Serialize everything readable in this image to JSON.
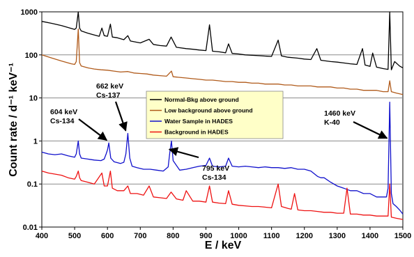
{
  "chart_data": {
    "type": "line",
    "title": "",
    "xlabel": "E / keV",
    "ylabel": "Count rate / d⁻¹ keV⁻¹",
    "xlim": [
      400,
      1500
    ],
    "ylim": [
      0.01,
      1000
    ],
    "yscale": "log",
    "grid": "horizontal",
    "legend_position": "top-center",
    "x_ticks": [
      400,
      500,
      600,
      700,
      800,
      900,
      1000,
      1100,
      1200,
      1300,
      1400,
      1500
    ],
    "y_ticks": [
      0.01,
      0.1,
      1,
      10,
      100,
      1000
    ],
    "y_tick_labels": [
      "0.01",
      "0.1",
      "1",
      "10",
      "100",
      "1000"
    ],
    "series": [
      {
        "name": "Normal-Bkg above ground",
        "color": "#000000",
        "x": [
          400,
          430,
          460,
          490,
          500,
          505,
          511,
          515,
          520,
          540,
          560,
          575,
          583,
          590,
          600,
          609,
          615,
          630,
          650,
          662,
          670,
          700,
          727,
          740,
          760,
          780,
          794,
          810,
          840,
          860,
          880,
          900,
          911,
          920,
          940,
          960,
          969,
          980,
          1000,
          1020,
          1040,
          1060,
          1080,
          1100,
          1120,
          1130,
          1150,
          1180,
          1200,
          1220,
          1238,
          1250,
          1280,
          1300,
          1320,
          1340,
          1360,
          1377,
          1385,
          1400,
          1408,
          1420,
          1440,
          1455,
          1460,
          1465,
          1475,
          1490,
          1500
        ],
        "values": [
          600,
          540,
          480,
          410,
          390,
          420,
          1000,
          420,
          360,
          320,
          290,
          270,
          420,
          280,
          270,
          520,
          260,
          250,
          225,
          280,
          210,
          190,
          230,
          175,
          165,
          160,
          260,
          150,
          140,
          135,
          130,
          126,
          500,
          122,
          118,
          112,
          180,
          108,
          105,
          100,
          98,
          96,
          94,
          92,
          220,
          95,
          88,
          84,
          80,
          78,
          140,
          75,
          70,
          68,
          65,
          62,
          60,
          140,
          58,
          54,
          110,
          52,
          48,
          46,
          1000,
          45,
          70,
          55,
          50
        ]
      },
      {
        "name": "Low background above ground",
        "color": "#b05a1a",
        "x": [
          400,
          430,
          460,
          490,
          500,
          505,
          511,
          515,
          520,
          540,
          560,
          580,
          600,
          620,
          640,
          662,
          680,
          700,
          720,
          740,
          760,
          780,
          795,
          800,
          820,
          840,
          860,
          880,
          900,
          920,
          940,
          960,
          980,
          1000,
          1020,
          1040,
          1060,
          1080,
          1100,
          1120,
          1140,
          1160,
          1180,
          1200,
          1220,
          1240,
          1260,
          1280,
          1300,
          1320,
          1340,
          1360,
          1380,
          1400,
          1420,
          1440,
          1455,
          1460,
          1465,
          1480,
          1500
        ],
        "values": [
          100,
          85,
          72,
          62,
          60,
          70,
          400,
          66,
          55,
          50,
          47,
          45,
          44,
          42,
          40,
          41,
          38,
          37,
          36,
          34,
          33,
          32,
          42,
          31,
          30,
          29,
          28,
          27,
          26,
          26,
          25,
          24,
          24,
          23,
          23,
          22,
          22,
          21,
          21,
          21,
          20,
          20,
          19,
          19,
          19,
          18,
          18,
          18,
          17,
          17,
          16,
          16,
          15,
          15,
          15,
          14,
          14,
          25,
          14,
          13,
          12
        ]
      },
      {
        "name": "Water Sample in HADES",
        "color": "#1010cc",
        "x": [
          400,
          420,
          440,
          460,
          480,
          500,
          505,
          511,
          515,
          520,
          540,
          560,
          580,
          590,
          596,
          600,
          604,
          610,
          620,
          640,
          650,
          656,
          662,
          668,
          675,
          690,
          710,
          730,
          750,
          770,
          785,
          790,
          795,
          800,
          820,
          840,
          860,
          880,
          900,
          911,
          920,
          940,
          960,
          969,
          980,
          1000,
          1020,
          1040,
          1060,
          1080,
          1100,
          1120,
          1140,
          1160,
          1180,
          1200,
          1220,
          1240,
          1250,
          1260,
          1280,
          1300,
          1320,
          1340,
          1360,
          1380,
          1400,
          1420,
          1440,
          1450,
          1455,
          1460,
          1465,
          1470,
          1480,
          1490,
          1500
        ],
        "values": [
          0.55,
          0.5,
          0.48,
          0.5,
          0.45,
          0.42,
          0.5,
          1.0,
          0.5,
          0.4,
          0.38,
          0.36,
          0.35,
          0.38,
          0.5,
          0.62,
          0.9,
          0.4,
          0.33,
          0.3,
          0.32,
          0.5,
          1.5,
          0.4,
          0.26,
          0.24,
          0.22,
          0.22,
          0.21,
          0.2,
          0.25,
          0.55,
          1.0,
          0.35,
          0.21,
          0.22,
          0.24,
          0.26,
          0.27,
          0.4,
          0.26,
          0.25,
          0.26,
          0.4,
          0.26,
          0.25,
          0.26,
          0.25,
          0.24,
          0.25,
          0.24,
          0.24,
          0.23,
          0.24,
          0.22,
          0.22,
          0.2,
          0.15,
          0.14,
          0.14,
          0.11,
          0.09,
          0.08,
          0.07,
          0.07,
          0.06,
          0.06,
          0.05,
          0.05,
          0.05,
          0.08,
          8.0,
          0.06,
          0.035,
          0.03,
          0.025,
          0.02
        ]
      },
      {
        "name": "Background in HADES",
        "color": "#ee1111",
        "x": [
          400,
          420,
          440,
          460,
          480,
          500,
          505,
          511,
          515,
          520,
          540,
          560,
          583,
          590,
          600,
          609,
          615,
          630,
          650,
          662,
          670,
          690,
          710,
          727,
          740,
          760,
          780,
          794,
          810,
          830,
          840,
          860,
          880,
          900,
          911,
          920,
          940,
          960,
          969,
          980,
          1000,
          1020,
          1040,
          1060,
          1080,
          1100,
          1120,
          1130,
          1150,
          1160,
          1170,
          1180,
          1200,
          1220,
          1240,
          1260,
          1280,
          1300,
          1320,
          1330,
          1340,
          1360,
          1380,
          1400,
          1420,
          1440,
          1455,
          1460,
          1465,
          1480,
          1500
        ],
        "values": [
          0.2,
          0.18,
          0.17,
          0.16,
          0.14,
          0.13,
          0.15,
          0.2,
          0.14,
          0.12,
          0.11,
          0.1,
          0.18,
          0.09,
          0.09,
          0.2,
          0.08,
          0.07,
          0.07,
          0.09,
          0.06,
          0.06,
          0.055,
          0.09,
          0.05,
          0.048,
          0.046,
          0.065,
          0.045,
          0.042,
          0.07,
          0.04,
          0.04,
          0.038,
          0.09,
          0.038,
          0.036,
          0.035,
          0.07,
          0.034,
          0.032,
          0.031,
          0.03,
          0.03,
          0.029,
          0.028,
          0.1,
          0.03,
          0.027,
          0.026,
          0.06,
          0.025,
          0.024,
          0.024,
          0.023,
          0.022,
          0.022,
          0.021,
          0.021,
          0.08,
          0.02,
          0.02,
          0.019,
          0.019,
          0.018,
          0.018,
          0.018,
          0.1,
          0.017,
          0.016,
          0.015
        ]
      }
    ],
    "annotations": [
      {
        "lines": [
          "662 keV",
          "Cs-137"
        ],
        "arrow_to": {
          "x": 662,
          "y": 1.5
        }
      },
      {
        "lines": [
          "604 keV",
          "Cs-134"
        ],
        "arrow_to": {
          "x": 604,
          "y": 0.9
        }
      },
      {
        "lines": [
          "795 keV",
          "Cs-134"
        ],
        "arrow_to": {
          "x": 795,
          "y": 0.55
        }
      },
      {
        "lines": [
          "1460 keV",
          "K-40"
        ],
        "arrow_to": {
          "x": 1458,
          "y": 1.0
        }
      }
    ]
  }
}
